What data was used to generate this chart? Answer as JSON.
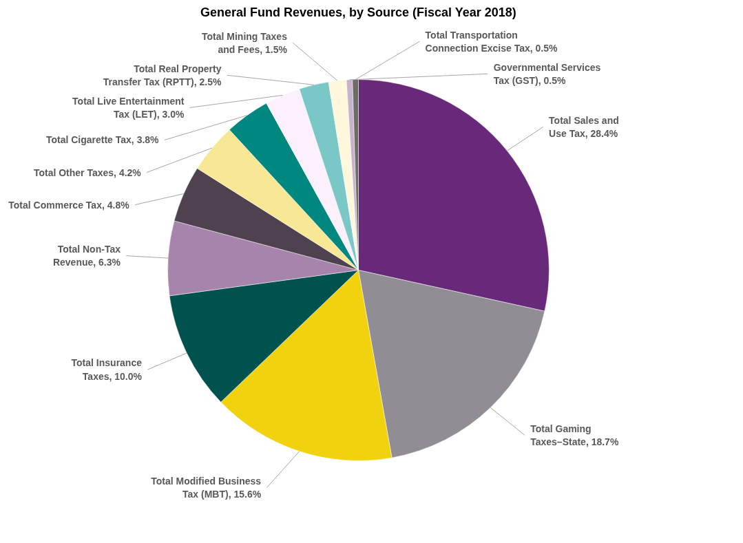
{
  "chart_data": {
    "type": "pie",
    "title": "General Fund Revenues, by Source (Fiscal Year 2018)",
    "categories": [
      "Total Sales and Use Tax",
      "Total Gaming Taxes–State",
      "Total Modified Business Tax (MBT)",
      "Total Insurance Taxes",
      "Total Non-Tax Revenue",
      "Total Commerce Tax",
      "Total Other Taxes",
      "Total Cigarette Tax",
      "Total Live Entertainment Tax (LET)",
      "Total Real Property Transfer Tax (RPTT)",
      "Total Mining Taxes and Fees",
      "Governmental Services Tax (GST)",
      "Total Transportation Connection Excise Tax"
    ],
    "values": [
      28.4,
      18.7,
      15.6,
      10.0,
      6.3,
      4.8,
      4.2,
      3.8,
      3.0,
      2.5,
      1.5,
      0.5,
      0.5
    ],
    "value_labels": [
      "28.4%",
      "18.7%",
      "15.6%",
      "10.0%",
      "6.3%",
      "4.8%",
      "4.2%",
      "3.8%",
      "3.0%",
      "2.5%",
      "1.5%",
      "0.5%",
      "0.5%"
    ],
    "colors": [
      "#68297a",
      "#918d94",
      "#f0d20f",
      "#00524f",
      "#a784ab",
      "#4f414d",
      "#f8e895",
      "#00877f",
      "#fdf0fd",
      "#79c7c7",
      "#fff8dc",
      "#c8b3cc",
      "#6e6a6a"
    ]
  }
}
